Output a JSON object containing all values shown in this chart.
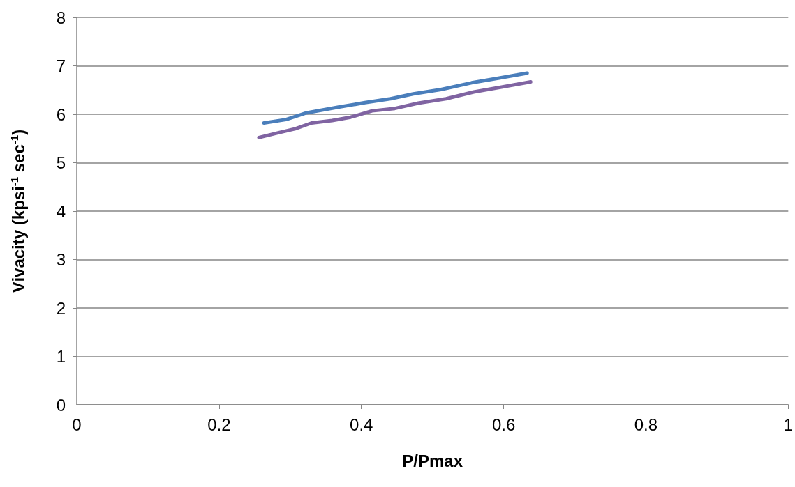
{
  "chart_data": {
    "type": "line",
    "xlabel": "P/Pmax",
    "ylabel": "Vivacity (kpsi$^{-1}$ sec$^{-1}$)",
    "xlim": [
      0,
      1
    ],
    "xticks": [
      0,
      0.2,
      0.4,
      0.6,
      0.8,
      1
    ],
    "ylim": [
      0,
      8
    ],
    "yticks": [
      0,
      1,
      2,
      3,
      4,
      5,
      6,
      7,
      8
    ],
    "grid": "y",
    "marker": "none",
    "line_style": "solid",
    "series": [
      {
        "color": "#4a7ebb",
        "x": [
          0.263,
          0.294,
          0.323,
          0.369,
          0.405,
          0.441,
          0.473,
          0.512,
          0.555,
          0.591,
          0.633
        ],
        "values": [
          5.82,
          5.89,
          6.03,
          6.15,
          6.24,
          6.32,
          6.42,
          6.51,
          6.65,
          6.74,
          6.85
        ]
      },
      {
        "color": "#8064a2",
        "x": [
          0.256,
          0.284,
          0.307,
          0.33,
          0.359,
          0.385,
          0.415,
          0.447,
          0.48,
          0.519,
          0.558,
          0.597,
          0.638
        ],
        "values": [
          5.52,
          5.62,
          5.7,
          5.82,
          5.87,
          5.94,
          6.07,
          6.12,
          6.23,
          6.32,
          6.46,
          6.56,
          6.67
        ]
      }
    ]
  }
}
